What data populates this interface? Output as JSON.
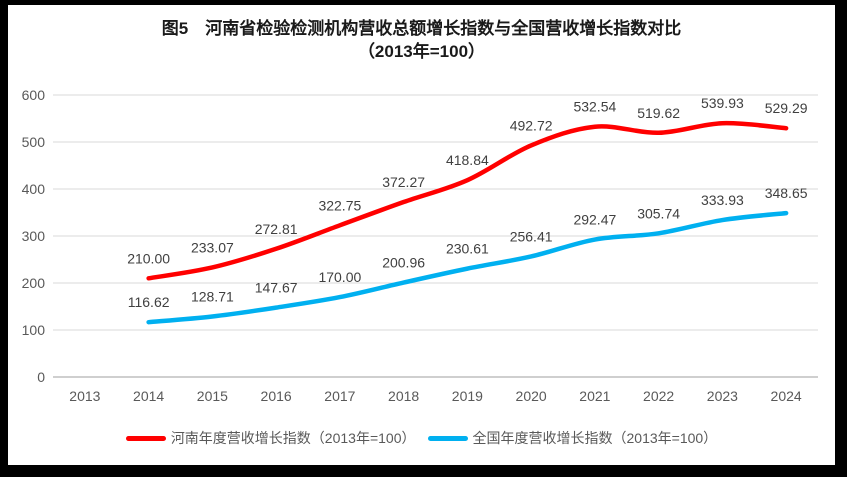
{
  "title": {
    "line1": "图5　河南省检验检测机构营收总额增长指数与全国营收增长指数对比",
    "line2": "（2013年=100）"
  },
  "chart_data": {
    "type": "line",
    "title": "图5　河南省检验检测机构营收总额增长指数与全国营收增长指数对比（2013年=100）",
    "categories": [
      "2013",
      "2014",
      "2015",
      "2016",
      "2017",
      "2018",
      "2019",
      "2020",
      "2021",
      "2022",
      "2023",
      "2024"
    ],
    "series": [
      {
        "name": "河南年度营收增长指数（2013年=100）",
        "key": "henan",
        "color": "#FF0000",
        "start_index": 1,
        "values": [
          210.0,
          233.07,
          272.81,
          322.75,
          372.27,
          418.84,
          492.72,
          532.54,
          519.62,
          539.93,
          529.29
        ]
      },
      {
        "name": "全国年度营收增长指数（2013年=100）",
        "key": "national",
        "color": "#00B0F0",
        "start_index": 1,
        "values": [
          116.62,
          128.71,
          147.67,
          170.0,
          200.96,
          230.61,
          256.41,
          292.47,
          305.74,
          333.93,
          348.65
        ]
      }
    ],
    "ylim": [
      0,
      600
    ],
    "ytick_step": 100,
    "yticks": [
      0,
      100,
      200,
      300,
      400,
      500,
      600
    ],
    "grid": true,
    "data_labels": true,
    "label_decimals": 2,
    "legend_position": "bottom",
    "smooth_lines": true
  },
  "colors": {
    "frame_border": "#000000",
    "background": "#ffffff",
    "gridline": "#d9d9d9",
    "axis_line": "#bfbfbf",
    "tick_label": "#595959",
    "data_label": "#404040",
    "title_text": "#1a1a1a",
    "series_henan": "#FF0000",
    "series_national": "#00B0F0"
  }
}
